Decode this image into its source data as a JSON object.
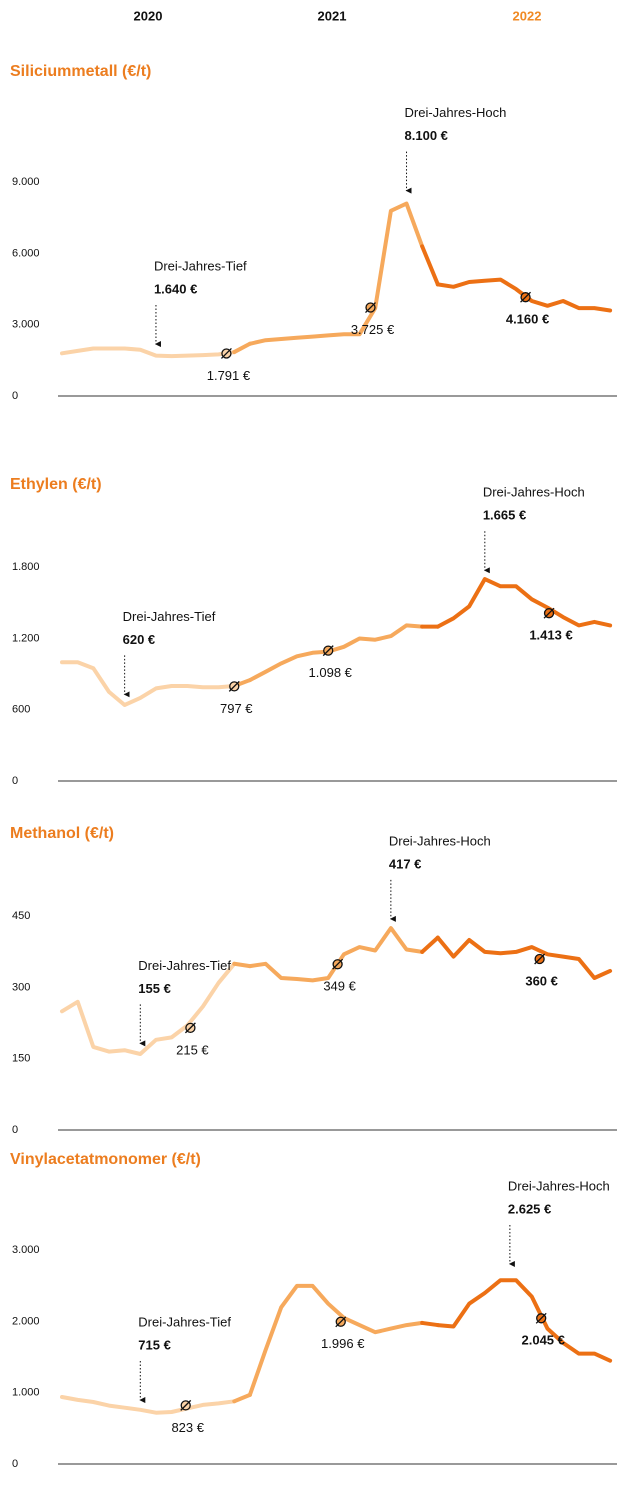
{
  "header": {
    "years": [
      {
        "label": "2020",
        "color": "#111111"
      },
      {
        "label": "2021",
        "color": "#111111"
      },
      {
        "label": "2022",
        "color": "#f08a24"
      }
    ]
  },
  "chart_data": [
    {
      "type": "line",
      "title": "Siliciummetall (€/t)",
      "ylim": [
        0,
        12000
      ],
      "yticks": [
        0,
        {
          "value": 3000,
          "label": "3.000"
        },
        {
          "value": 6000,
          "label": "6.000"
        },
        {
          "value": 9000,
          "label": "9.000"
        }
      ],
      "series": [
        {
          "color": "#fbd3a8",
          "values": [
            1800,
            1900,
            2000,
            2000,
            2000,
            1950,
            1700,
            1680,
            1700,
            1720,
            1750,
            1850
          ]
        },
        {
          "color": "#f6a95c",
          "values": [
            2200,
            2350,
            2400,
            2450,
            2500,
            2550,
            2600,
            2600,
            3700,
            7800,
            8100,
            6300
          ]
        },
        {
          "color": "#ec7014",
          "values": [
            4700,
            4600,
            4800,
            4850,
            4900,
            4500,
            4000,
            3800,
            4000,
            3700,
            3700,
            3600
          ]
        }
      ],
      "annotations": [
        {
          "text": "Drei-Jahres-Tief",
          "value": 1640,
          "value_label": "1.640 €"
        },
        {
          "text": "Drei-Jahres-Hoch",
          "value": 8100,
          "value_label": "8.100 €"
        }
      ],
      "averages": [
        {
          "value": 1791,
          "value_label": "1.791 €"
        },
        {
          "value": 3725,
          "value_label": "3.725 €"
        },
        {
          "value": 4160,
          "value_label": "4.160 €"
        }
      ]
    },
    {
      "type": "line",
      "title": "Ethylen (€/t)",
      "ylim": [
        0,
        2400
      ],
      "yticks": [
        0,
        600,
        {
          "value": 1200,
          "label": "1.200"
        },
        {
          "value": 1800,
          "label": "1.800"
        }
      ],
      "series": [
        {
          "color": "#fbd3a8",
          "values": [
            1000,
            1000,
            950,
            750,
            640,
            700,
            780,
            800,
            800,
            790,
            790,
            800
          ]
        },
        {
          "color": "#f6a95c",
          "values": [
            850,
            920,
            990,
            1050,
            1080,
            1090,
            1130,
            1200,
            1190,
            1220,
            1310,
            1300
          ]
        },
        {
          "color": "#ec7014",
          "values": [
            1300,
            1370,
            1470,
            1700,
            1640,
            1640,
            1530,
            1460,
            1380,
            1310,
            1340,
            1310
          ]
        }
      ],
      "annotations": [
        {
          "text": "Drei-Jahres-Tief",
          "value": 620,
          "value_label": "620 €"
        },
        {
          "text": "Drei-Jahres-Hoch",
          "value": 1665,
          "value_label": "1.665 €"
        }
      ],
      "averages": [
        {
          "value": 797,
          "value_label": "797 €"
        },
        {
          "value": 1098,
          "value_label": "1.098 €"
        },
        {
          "value": 1413,
          "value_label": "1.413 €"
        }
      ]
    },
    {
      "type": "line",
      "title": "Methanol (€/t)",
      "ylim": [
        0,
        600
      ],
      "yticks": [
        0,
        150,
        300,
        450
      ],
      "series": [
        {
          "color": "#fbd3a8",
          "values": [
            250,
            270,
            175,
            165,
            168,
            160,
            190,
            195,
            220,
            260,
            310,
            350
          ]
        },
        {
          "color": "#f6a95c",
          "values": [
            345,
            350,
            320,
            318,
            315,
            320,
            370,
            385,
            378,
            425,
            380,
            375
          ]
        },
        {
          "color": "#ec7014",
          "values": [
            405,
            365,
            400,
            375,
            372,
            375,
            385,
            370,
            365,
            360,
            320,
            335
          ]
        }
      ],
      "annotations": [
        {
          "text": "Drei-Jahres-Tief",
          "value": 155,
          "value_label": "155 €"
        },
        {
          "text": "Drei-Jahres-Hoch",
          "value": 417,
          "value_label": "417 €"
        }
      ],
      "averages": [
        {
          "value": 215,
          "value_label": "215 €"
        },
        {
          "value": 349,
          "value_label": "349 €"
        },
        {
          "value": 360,
          "value_label": "360 €"
        }
      ]
    },
    {
      "type": "line",
      "title": "Vinylacetatmonomer (€/t)",
      "ylim": [
        0,
        4000
      ],
      "yticks": [
        0,
        {
          "value": 1000,
          "label": "1.000"
        },
        {
          "value": 2000,
          "label": "2.000"
        },
        {
          "value": 3000,
          "label": "3.000"
        }
      ],
      "series": [
        {
          "color": "#fbd3a8",
          "values": [
            940,
            900,
            870,
            820,
            790,
            760,
            720,
            730,
            780,
            830,
            850,
            880
          ]
        },
        {
          "color": "#f6a95c",
          "values": [
            970,
            1600,
            2200,
            2500,
            2500,
            2250,
            2050,
            1950,
            1850,
            1900,
            1950,
            1980
          ]
        },
        {
          "color": "#ec7014",
          "values": [
            1950,
            1930,
            2250,
            2400,
            2580,
            2580,
            2350,
            1900,
            1700,
            1550,
            1550,
            1450
          ]
        }
      ],
      "annotations": [
        {
          "text": "Drei-Jahres-Tief",
          "value": 715,
          "value_label": "715 €"
        },
        {
          "text": "Drei-Jahres-Hoch",
          "value": 2625,
          "value_label": "2.625 €"
        }
      ],
      "averages": [
        {
          "value": 823,
          "value_label": "823 €"
        },
        {
          "value": 1996,
          "value_label": "1.996 €"
        },
        {
          "value": 2045,
          "value_label": "2.045 €"
        }
      ]
    }
  ]
}
